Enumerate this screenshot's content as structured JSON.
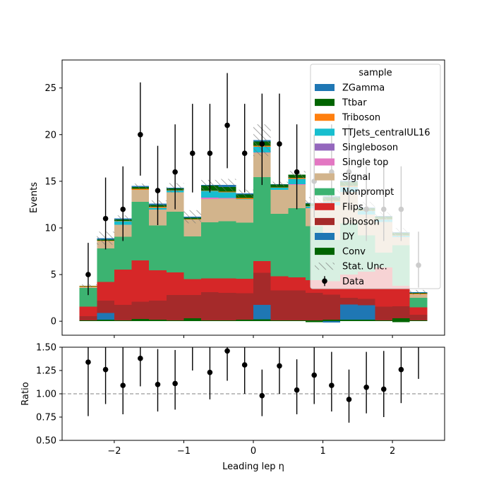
{
  "chart_data": {
    "type": "bar",
    "subtype": "stacked-histogram-with-ratio",
    "xlabel": "Leading lep η",
    "xlim": [
      -2.75,
      2.75
    ],
    "bin_edges": [
      -2.5,
      -2.25,
      -2.0,
      -1.75,
      -1.5,
      -1.25,
      -1.0,
      -0.75,
      -0.5,
      -0.25,
      0.0,
      0.25,
      0.5,
      0.75,
      1.0,
      1.25,
      1.5,
      1.75,
      2.0,
      2.25,
      2.5
    ],
    "x_ticks": [
      "−2",
      "−1",
      "0",
      "1",
      "2"
    ],
    "x_tick_values": [
      -2,
      -1,
      0,
      1,
      2
    ],
    "main": {
      "ylabel": "Events",
      "ylim": [
        -1.5,
        28.0
      ],
      "y_ticks": [
        "0",
        "5",
        "10",
        "15",
        "20",
        "25"
      ],
      "y_tick_values": [
        0,
        5,
        10,
        15,
        20,
        25
      ],
      "stack_order_bottom_to_top": [
        "Conv",
        "DY",
        "Diboson",
        "Flips",
        "Nonprompt",
        "Signal",
        "Single top",
        "Singleboson",
        "TTJets_centralUL16",
        "Triboson",
        "Ttbar",
        "ZGamma"
      ],
      "stack_totals": [
        3.8,
        8.9,
        11.0,
        14.5,
        12.6,
        14.3,
        11.2,
        14.6,
        14.6,
        13.7,
        19.4,
        14.7,
        15.7,
        12.7,
        13.4,
        15.1,
        12.2,
        11.2,
        9.5,
        3.1
      ],
      "series": [
        {
          "name": "Conv",
          "values": [
            0.1,
            0.15,
            0.1,
            0.25,
            0.15,
            0.1,
            0.3,
            0.1,
            0.1,
            0.15,
            0.2,
            0.1,
            0.1,
            0.1,
            0.15,
            0.15,
            0.15,
            0.1,
            0.3,
            0.1
          ]
        },
        {
          "name": "DY",
          "values": [
            0.0,
            0.75,
            0.0,
            0.0,
            0.0,
            0.0,
            0.0,
            0.0,
            0.0,
            0.0,
            1.55,
            0.0,
            0.0,
            0.0,
            0.0,
            1.65,
            1.55,
            0.0,
            0.0,
            0.0
          ]
        },
        {
          "name": "Diboson",
          "values": [
            0.45,
            1.3,
            1.65,
            1.85,
            2.05,
            2.7,
            2.5,
            3.0,
            2.95,
            2.85,
            3.45,
            3.2,
            3.2,
            2.95,
            2.7,
            0.7,
            0.7,
            1.45,
            1.3,
            0.6
          ]
        },
        {
          "name": "Flips",
          "values": [
            1.0,
            2.0,
            3.8,
            4.4,
            3.25,
            2.45,
            1.7,
            1.5,
            1.55,
            1.55,
            1.25,
            1.5,
            1.4,
            1.35,
            1.45,
            2.5,
            2.9,
            4.2,
            2.2,
            0.8
          ]
        },
        {
          "name": "Nonprompt",
          "values": [
            2.0,
            3.6,
            3.5,
            6.3,
            4.8,
            6.5,
            4.6,
            6.0,
            6.1,
            6.0,
            9.0,
            6.7,
            7.4,
            5.8,
            4.4,
            5.5,
            3.9,
            1.6,
            4.35,
            1.0
          ]
        },
        {
          "name": "Signal",
          "values": [
            0.15,
            0.8,
            1.3,
            1.3,
            1.7,
            2.05,
            1.8,
            2.5,
            2.45,
            2.5,
            2.6,
            2.6,
            2.5,
            1.9,
            3.7,
            3.35,
            2.25,
            3.3,
            0.85,
            0.4
          ]
        },
        {
          "name": "Single top",
          "values": [
            0.0,
            0.0,
            0.0,
            0.0,
            0.0,
            0.0,
            0.0,
            0.15,
            0.05,
            0.0,
            0.05,
            0.0,
            0.1,
            0.0,
            0.0,
            0.0,
            0.0,
            0.0,
            0.0,
            0.0
          ]
        },
        {
          "name": "Singleboson",
          "values": [
            0.0,
            0.0,
            0.0,
            0.0,
            0.0,
            0.0,
            0.0,
            0.0,
            0.0,
            0.0,
            0.0,
            0.0,
            0.0,
            0.0,
            0.0,
            0.0,
            0.0,
            0.0,
            0.0,
            0.0
          ]
        },
        {
          "name": "TTJets_centralUL16",
          "values": [
            0.0,
            0.0,
            0.35,
            0.0,
            0.2,
            0.2,
            0.0,
            0.7,
            0.6,
            0.05,
            0.6,
            0.2,
            0.55,
            0.2,
            0.4,
            0.55,
            0.35,
            0.25,
            0.15,
            0.0
          ]
        },
        {
          "name": "Triboson",
          "values": [
            0.05,
            0.05,
            0.05,
            0.1,
            0.1,
            0.05,
            0.05,
            0.05,
            0.1,
            0.1,
            0.1,
            0.05,
            0.1,
            0.05,
            0.1,
            0.1,
            0.05,
            0.05,
            0.05,
            0.05
          ]
        },
        {
          "name": "Ttbar",
          "values": [
            0.05,
            0.1,
            0.15,
            0.2,
            0.2,
            0.2,
            0.15,
            0.55,
            0.5,
            0.4,
            0.45,
            0.3,
            0.35,
            0.25,
            0.4,
            0.45,
            0.25,
            0.25,
            0.25,
            0.1
          ]
        },
        {
          "name": "ZGamma",
          "values": [
            0.0,
            0.15,
            0.1,
            0.1,
            0.15,
            0.05,
            0.1,
            0.05,
            0.2,
            0.1,
            0.15,
            0.05,
            0.0,
            0.1,
            0.1,
            0.1,
            0.1,
            0.1,
            0.1,
            0.05
          ]
        }
      ],
      "negative_components": [
        {
          "name": "DY",
          "values": [
            0.0,
            0.0,
            0.0,
            0.0,
            0.0,
            0.0,
            0.0,
            0.0,
            0.0,
            0.0,
            0.0,
            0.0,
            0.0,
            0.0,
            -0.15,
            0.0,
            0.0,
            0.0,
            0.0,
            0.0
          ]
        },
        {
          "name": "Ttbar",
          "values": [
            0.0,
            0.0,
            0.0,
            0.0,
            0.0,
            0.0,
            0.0,
            0.0,
            0.0,
            0.0,
            0.0,
            0.0,
            0.0,
            -0.1,
            0.0,
            0.0,
            0.0,
            0.0,
            -0.1,
            0.0
          ]
        }
      ],
      "stat_unc_halfwidth": [
        0.15,
        0.7,
        0.35,
        0.25,
        0.35,
        0.5,
        0.7,
        0.55,
        0.65,
        0.4,
        1.7,
        0.25,
        0.4,
        0.6,
        0.7,
        0.8,
        0.6,
        0.5,
        0.5,
        0.25
      ],
      "data": {
        "name": "Data",
        "values": [
          5,
          11,
          12,
          20,
          14,
          16,
          18,
          18,
          21,
          18,
          19,
          19,
          16,
          15,
          16,
          16,
          12,
          12,
          12,
          6
        ],
        "err_low": [
          2.2,
          3.3,
          3.4,
          4.4,
          3.7,
          4.0,
          4.2,
          4.2,
          4.6,
          4.2,
          4.4,
          4.4,
          4.0,
          3.9,
          4.0,
          4.0,
          3.4,
          3.4,
          3.4,
          2.4
        ],
        "err_high": [
          3.4,
          4.4,
          4.6,
          5.6,
          4.8,
          5.1,
          5.3,
          5.3,
          5.6,
          5.3,
          5.4,
          5.4,
          5.1,
          5.0,
          5.1,
          5.1,
          4.6,
          4.6,
          4.6,
          3.6
        ]
      },
      "legend": {
        "title": "sample",
        "placement": "top-right",
        "entries": [
          "ZGamma",
          "Ttbar",
          "Triboson",
          "TTJets_centralUL16",
          "Singleboson",
          "Single top",
          "Signal",
          "Nonprompt",
          "Flips",
          "Diboson",
          "DY",
          "Conv",
          "Stat. Unc.",
          "Data"
        ]
      }
    },
    "ratio": {
      "ylabel": "Ratio",
      "ylim": [
        0.5,
        1.5
      ],
      "y_ticks": [
        "0.50",
        "0.75",
        "1.00",
        "1.25",
        "1.50"
      ],
      "y_tick_values": [
        0.5,
        0.75,
        1.0,
        1.25,
        1.5
      ],
      "reference_line": 1.0,
      "values": [
        1.34,
        1.26,
        1.09,
        1.38,
        1.1,
        1.11,
        1.61,
        1.23,
        1.46,
        1.31,
        0.98,
        1.3,
        1.04,
        1.2,
        1.09,
        0.94,
        1.07,
        1.05,
        1.26,
        1.93
      ],
      "err_low": [
        0.58,
        0.37,
        0.31,
        0.3,
        0.29,
        0.28,
        0.36,
        0.29,
        0.32,
        0.31,
        0.22,
        0.3,
        0.26,
        0.31,
        0.28,
        0.25,
        0.28,
        0.3,
        0.36,
        0.77
      ],
      "err_high": [
        0.9,
        0.49,
        0.42,
        0.39,
        0.38,
        0.36,
        0.48,
        0.37,
        0.38,
        0.39,
        0.28,
        0.37,
        0.33,
        0.39,
        0.36,
        0.32,
        0.38,
        0.41,
        0.49,
        1.16
      ]
    },
    "colors": {
      "ZGamma": "#1f77b4",
      "Ttbar": "#006400",
      "Triboson": "#ff7f0e",
      "TTJets_centralUL16": "#17becf",
      "Singleboson": "#9467bd",
      "Single top": "#e377c2",
      "Signal": "#d2b48c",
      "Nonprompt": "#3cb371",
      "Flips": "#d62728",
      "Diboson": "#a52a2a",
      "DY": "#1f77b4",
      "Conv": "#006400",
      "Data": "#000000",
      "Stat. Unc.": "#808080"
    }
  }
}
